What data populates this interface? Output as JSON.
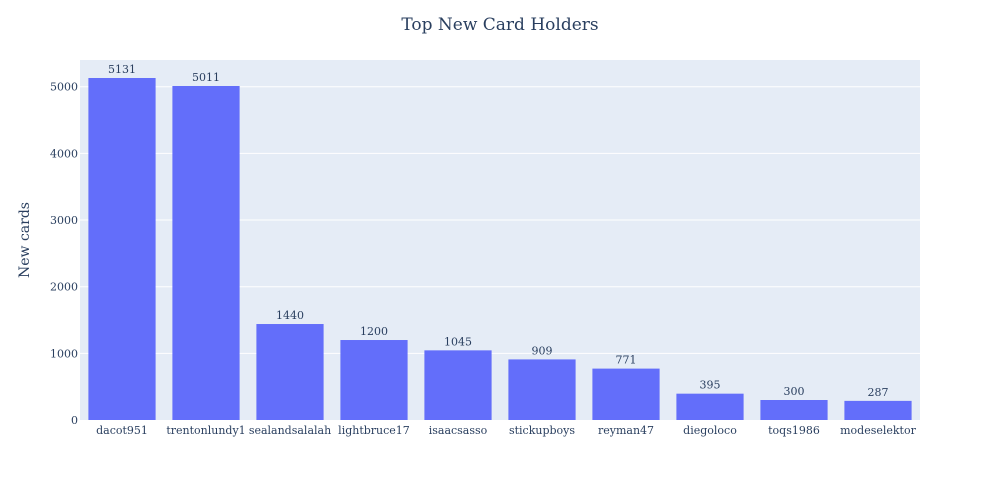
{
  "colors": {
    "plot_bg": "#e5ecf6",
    "grid": "#ffffff",
    "bar": "#636efa",
    "text": "#2a3f5f"
  },
  "chart_data": {
    "type": "bar",
    "title": "Top New Card Holders",
    "xlabel": "",
    "ylabel": "New cards",
    "categories": [
      "dacot951",
      "trentonlundy1",
      "sealandsalalah",
      "lightbruce17",
      "isaacsasso",
      "stickupboys",
      "reyman47",
      "diegoloco",
      "toqs1986",
      "modeselektor"
    ],
    "values": [
      5131,
      5011,
      1440,
      1200,
      1045,
      909,
      771,
      395,
      300,
      287
    ],
    "ylim": [
      0,
      5401
    ],
    "yticks": [
      0,
      1000,
      2000,
      3000,
      4000,
      5000
    ],
    "grid": true,
    "show_value_labels": true
  }
}
